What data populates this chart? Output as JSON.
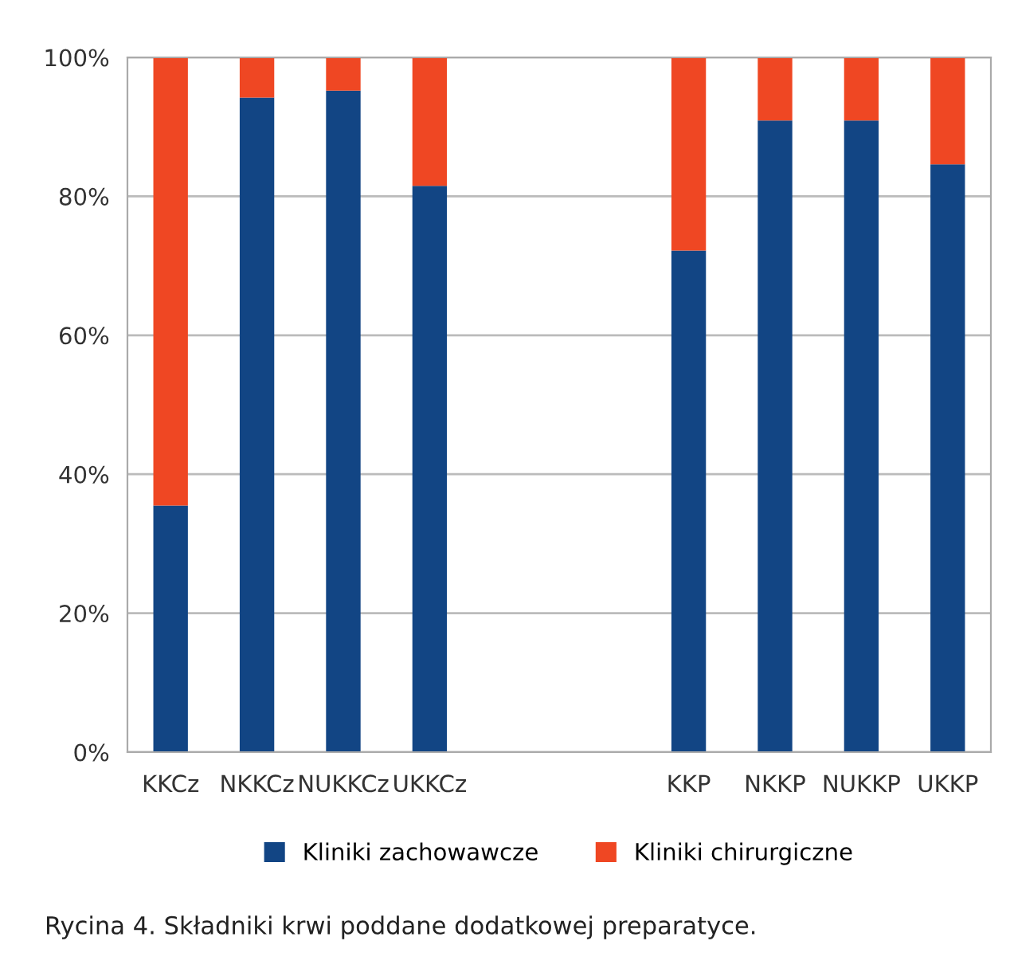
{
  "chart_data": {
    "type": "bar",
    "stacked": true,
    "categories": [
      "KKCz",
      "NKKCz",
      "NUKKCz",
      "UKKCz",
      null,
      null,
      "KKP",
      "NKKP",
      "NUKKP",
      "UKKP"
    ],
    "series": [
      {
        "name": "Kliniki zachowawcze",
        "color": "#124584",
        "values": [
          35.5,
          94.2,
          95.2,
          81.5,
          null,
          null,
          72.2,
          90.9,
          90.9,
          84.6
        ]
      },
      {
        "name": "Kliniki chirurgiczne",
        "color": "#ef4723",
        "values": [
          64.5,
          5.8,
          4.8,
          18.5,
          null,
          null,
          27.8,
          9.1,
          9.1,
          15.4
        ]
      }
    ],
    "ylim": [
      0,
      100
    ],
    "yticks": [
      {
        "value": 0,
        "label": "0%"
      },
      {
        "value": 20,
        "label": "20%"
      },
      {
        "value": 40,
        "label": "40%"
      },
      {
        "value": 60,
        "label": "60%"
      },
      {
        "value": 80,
        "label": "80%"
      },
      {
        "value": 100,
        "label": "100%"
      }
    ],
    "grid": "y",
    "legend": "bottom",
    "annotations": [
      "Rycina 4. Składniki krwi poddane dodatkowej preparatyce."
    ]
  }
}
